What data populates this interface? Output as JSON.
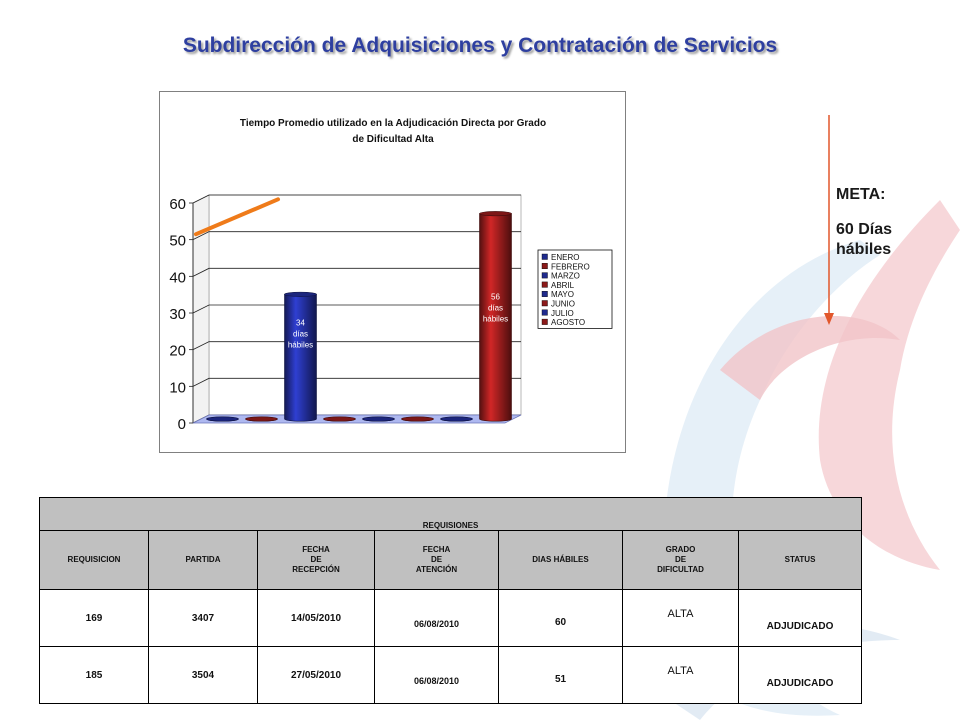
{
  "slide": {
    "title": "Subdirección de Adquisiciones y Contratación de Servicios"
  },
  "meta": {
    "label": "META:",
    "value": "60 Días hábiles"
  },
  "chart_data": {
    "type": "bar",
    "title_lines": [
      "Tiempo Promedio utilizado en la Adjudicación Directa por Grado",
      "de Dificultad Alta"
    ],
    "categories": [
      "ENERO",
      "FEBRERO",
      "MARZO",
      "ABRIL",
      "MAYO",
      "JUNIO",
      "JULIO",
      "AGOSTO"
    ],
    "values": [
      0,
      0,
      34,
      0,
      0,
      0,
      0,
      56
    ],
    "data_labels": [
      {
        "category": "MARZO",
        "lines": [
          "34",
          "días",
          "hábiles"
        ]
      },
      {
        "category": "AGOSTO",
        "lines": [
          "56",
          "días",
          "hábiles"
        ]
      }
    ],
    "colors": [
      "#1f2a8c",
      "#8b1a1a",
      "#1f2a8c",
      "#8b1a1a",
      "#1f2a8c",
      "#8b1a1a",
      "#1f2a8c",
      "#8b1a1a"
    ],
    "ylim": [
      0,
      60
    ],
    "yticks": [
      0,
      10,
      20,
      30,
      40,
      50,
      60
    ],
    "grid": true,
    "legend_position": "right",
    "style": "3d-cylinder"
  },
  "table": {
    "caption": "REQUISIONES",
    "headers": [
      "REQUISICION",
      "PARTIDA",
      "FECHA\nDE\nRECEPCIÓN",
      "FECHA\nDE\nATENCIÓN",
      "DIAS HÁBILES",
      "GRADO\nDE\nDIFICULTAD",
      "STATUS"
    ],
    "rows": [
      [
        "169",
        "3407",
        "14/05/2010",
        "06/08/2010",
        "60",
        "ALTA",
        "ADJUDICADO"
      ],
      [
        "185",
        "3504",
        "27/05/2010",
        "06/08/2010",
        "51",
        "ALTA",
        "ADJUDICADO"
      ]
    ]
  }
}
